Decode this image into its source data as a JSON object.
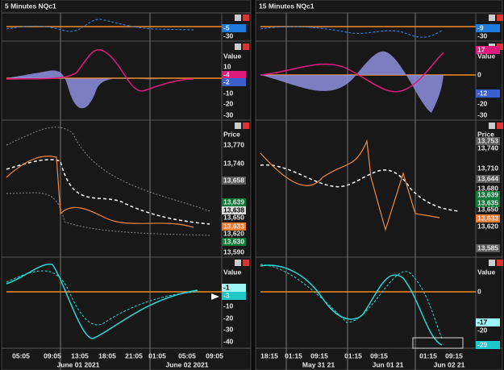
{
  "charts": [
    {
      "title": "5 Minutes NQc1",
      "panes": [
        {
          "labels": [
            {
              "text": "-5",
              "color": "#1e7be0"
            },
            "-30"
          ]
        },
        {
          "labels": [
            "Value",
            "10",
            {
              "text": "-4",
              "color": "#e0197c"
            },
            {
              "text": "-2",
              "color": "#3a5fcd"
            },
            "-10",
            "-20",
            "-30"
          ]
        },
        {
          "labels": [
            "Price",
            "13,770",
            "13,740",
            {
              "text": "13,658",
              "color": "#5a5a5a"
            },
            {
              "text": "13,639",
              "color": "#0e7a3a"
            },
            {
              "text": "13,638",
              "color": "#dddddd"
            },
            "13,650",
            {
              "text": "13,633",
              "color": "#f07a2a"
            },
            "13,620",
            {
              "text": "13,630",
              "color": "#0e7a3a"
            },
            "13,590"
          ]
        },
        {
          "labels": [
            "Value",
            {
              "text": "-1",
              "color": "#9ff4f4"
            },
            {
              "text": "-3",
              "color": "#1fc8c8"
            },
            "-10",
            "-20",
            "-30",
            "-40"
          ]
        }
      ],
      "times": [
        "05:05",
        "09:05",
        "13:05",
        "18:05",
        "21:05",
        "01:05",
        "05:05",
        "09:05"
      ],
      "dates": [
        "June 01 2021",
        "June 02 2021"
      ]
    },
    {
      "title": "15 Minutes NQc1",
      "panes": [
        {
          "labels": [
            {
              "text": "-9",
              "color": "#1e7be0"
            },
            "-30"
          ]
        },
        {
          "labels": [
            {
              "text": "17",
              "color": "#e0197c"
            },
            "Value",
            "0",
            {
              "text": "-12",
              "color": "#3a5fcd"
            },
            "-20",
            "-30"
          ]
        },
        {
          "labels": [
            "Price",
            {
              "text": "13,753",
              "color": "#5a5a5a"
            },
            "13,740",
            "13,710",
            {
              "text": "13,644",
              "color": "#5a5a5a"
            },
            "13,680",
            {
              "text": "13,639",
              "color": "#0e7a3a"
            },
            {
              "text": "13,635",
              "color": "#0e7a3a"
            },
            "13,650",
            {
              "text": "13,633",
              "color": "#f07a2a"
            },
            "13,620",
            {
              "text": "13,585",
              "color": "#5a5a5a"
            }
          ]
        },
        {
          "labels": [
            "Value",
            "0",
            {
              "text": "-17",
              "color": "#9ff4f4"
            },
            "-20",
            {
              "text": "-29",
              "color": "#1fc8c8"
            }
          ]
        }
      ],
      "times": [
        "18:15",
        "01:15",
        "09:15",
        "01:15",
        "09:15",
        "01:15",
        "09:15"
      ],
      "dates": [
        "May 31 21",
        "Jun 01 21",
        "Jun 02 21"
      ]
    }
  ]
}
